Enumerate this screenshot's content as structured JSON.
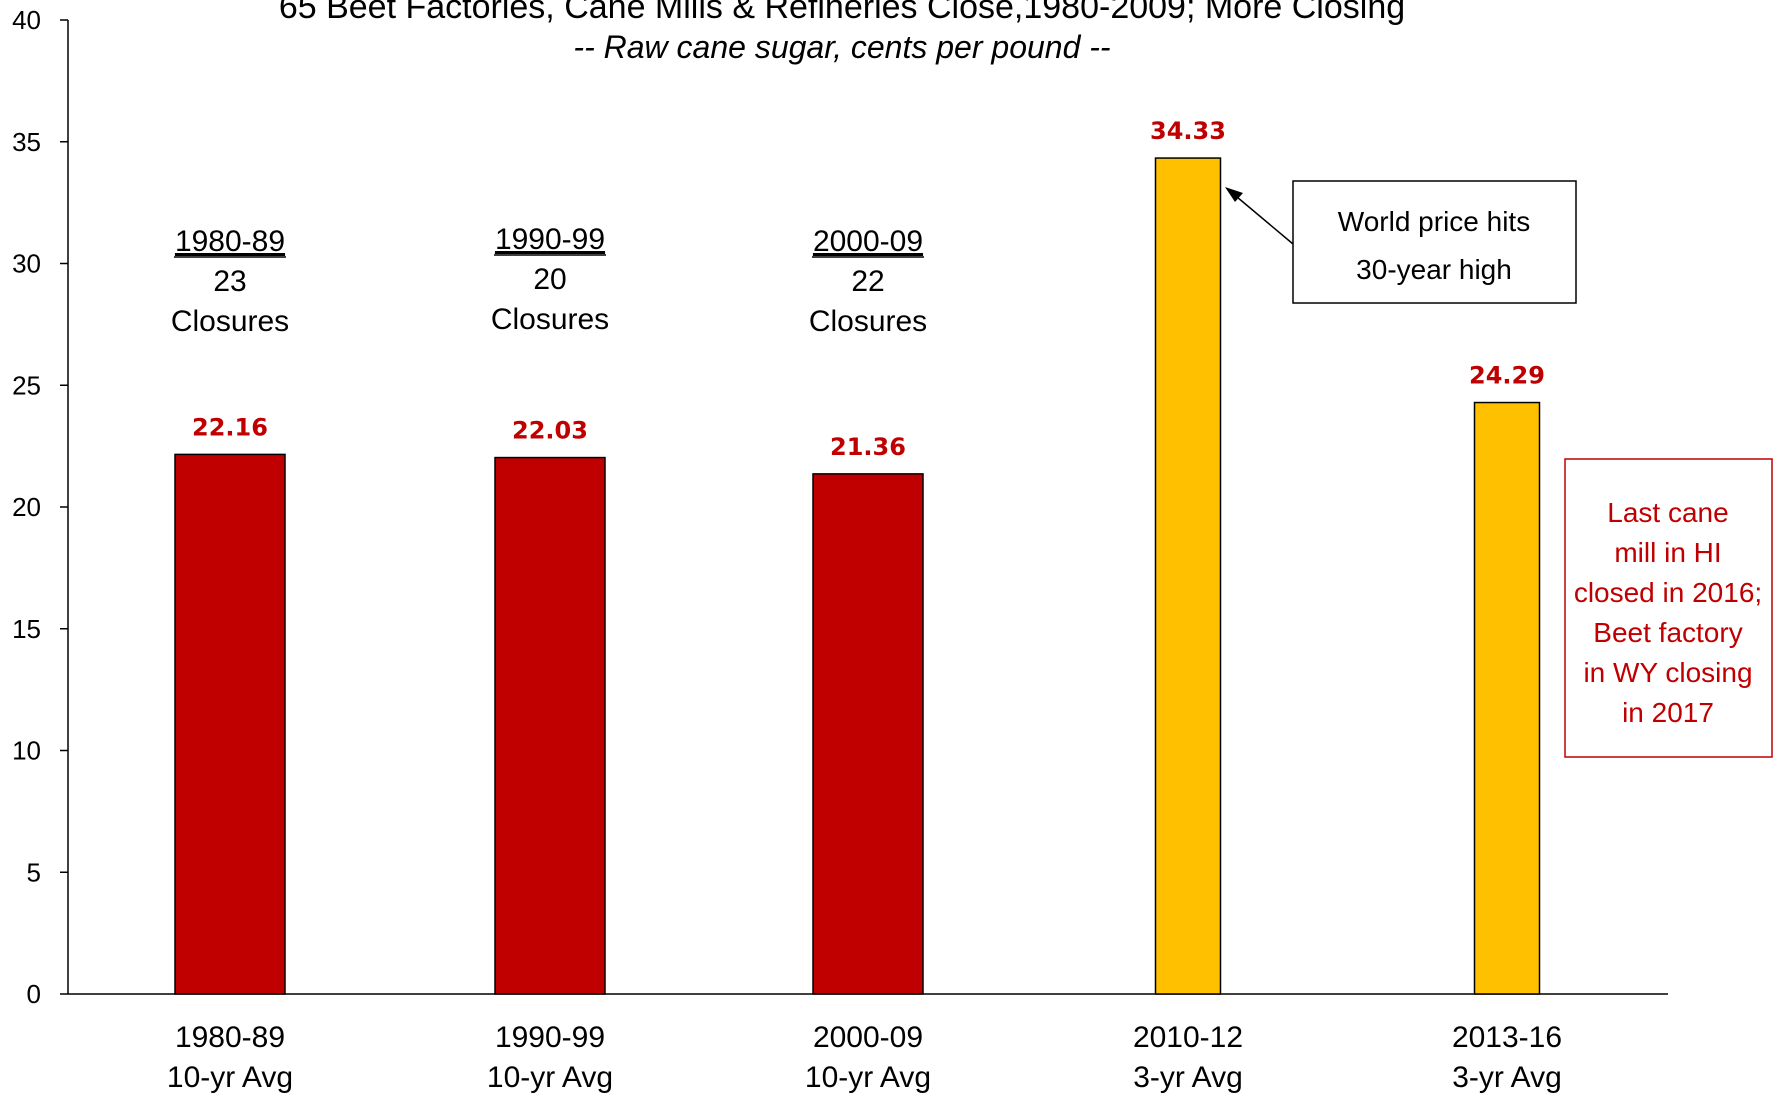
{
  "chart_data": {
    "type": "bar",
    "title": "65 Beet Factories, Cane Mills & Refineries Close,1980-2009; More Closing",
    "subtitle": "-- Raw cane sugar, cents per pound --",
    "categories": [
      {
        "line1": "1980-89",
        "line2": "10-yr Avg"
      },
      {
        "line1": "1990-99",
        "line2": "10-yr Avg"
      },
      {
        "line1": "2000-09",
        "line2": "10-yr Avg"
      },
      {
        "line1": "2010-12",
        "line2": "3-yr Avg"
      },
      {
        "line1": "2013-16",
        "line2": "3-yr Avg"
      }
    ],
    "values": [
      22.16,
      22.03,
      21.36,
      34.33,
      24.29
    ],
    "value_labels": [
      "22.16",
      "22.03",
      "21.36",
      "34.33",
      "24.29"
    ],
    "bar_colors": [
      "#C00000",
      "#C00000",
      "#C00000",
      "#FFC000",
      "#FFC000"
    ],
    "value_label_color": "#C00000",
    "ylim": [
      0,
      40
    ],
    "yticks": [
      "0",
      "5",
      "10",
      "15",
      "20",
      "25",
      "30",
      "35",
      "40"
    ],
    "xlabel": "",
    "ylabel": "",
    "grid": false,
    "era_annotations": [
      {
        "period": "1980-89",
        "count": "23",
        "label": "Closures"
      },
      {
        "period": "1990-99",
        "count": "20",
        "label": "Closures"
      },
      {
        "period": "2000-09",
        "count": "22",
        "label": "Closures"
      }
    ],
    "callouts": [
      {
        "lines": [
          "World price hits",
          "30-year high"
        ],
        "border_color": "#000000",
        "text_color": "#000000"
      },
      {
        "lines": [
          "Last cane",
          "mill in HI",
          "closed in 2016;",
          "Beet factory",
          "in WY closing",
          "in 2017"
        ],
        "border_color": "#C00000",
        "text_color": "#C00000"
      }
    ]
  }
}
